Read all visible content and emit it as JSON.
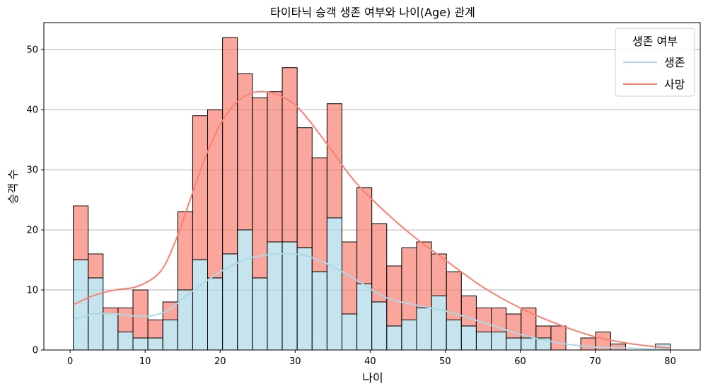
{
  "chart_data": {
    "type": "bar",
    "stacked": true,
    "title": "타이타닉 승객 생존 여부와 나이(Age) 관계",
    "xlabel": "나이",
    "ylabel": "승객 수",
    "xlim": [
      -3.5,
      84
    ],
    "ylim": [
      0,
      54.5
    ],
    "xticks": [
      0,
      10,
      20,
      30,
      40,
      50,
      60,
      70,
      80
    ],
    "yticks": [
      0,
      10,
      20,
      30,
      40,
      50
    ],
    "grid": "horizontal",
    "legend": {
      "title": "생존 여부",
      "placement": "top-right",
      "entries": [
        "생존",
        "사망"
      ]
    },
    "bin_edges": [
      0.42,
      2.41,
      4.4,
      6.39,
      8.38,
      10.37,
      12.36,
      14.35,
      16.34,
      18.33,
      20.32,
      22.31,
      24.3,
      26.29,
      28.28,
      30.27,
      32.26,
      34.25,
      36.24,
      38.23,
      40.22,
      42.21,
      44.2,
      46.19,
      48.18,
      50.17,
      52.16,
      54.15,
      56.14,
      58.13,
      60.12,
      62.11,
      64.1,
      66.09,
      68.08,
      70.07,
      72.06,
      74.05,
      76.04,
      78.03,
      80.02
    ],
    "series": [
      {
        "name": "생존",
        "color": "#add8e6",
        "counts": [
          15,
          12,
          6,
          3,
          2,
          2,
          5,
          10,
          15,
          12,
          16,
          20,
          12,
          18,
          18,
          17,
          13,
          22,
          6,
          11,
          8,
          4,
          5,
          7,
          9,
          5,
          4,
          3,
          3,
          2,
          2,
          2,
          0,
          0,
          0,
          0,
          0,
          0,
          0,
          1
        ],
        "kde": [
          [
            0.4,
            5.0
          ],
          [
            3,
            6.0
          ],
          [
            6,
            6.0
          ],
          [
            10,
            5.6
          ],
          [
            13,
            6.6
          ],
          [
            16,
            9.5
          ],
          [
            20,
            13.0
          ],
          [
            24,
            15.3
          ],
          [
            28,
            16.0
          ],
          [
            31,
            15.8
          ],
          [
            34,
            14.5
          ],
          [
            38,
            11.8
          ],
          [
            42,
            8.8
          ],
          [
            46,
            7.5
          ],
          [
            50,
            6.5
          ],
          [
            55,
            4.6
          ],
          [
            60,
            2.6
          ],
          [
            65,
            1.2
          ],
          [
            70,
            0.5
          ],
          [
            75,
            0.3
          ],
          [
            80,
            0.1
          ]
        ]
      },
      {
        "name": "사망",
        "color": "#fa8072",
        "counts": [
          9,
          4,
          1,
          4,
          8,
          3,
          3,
          13,
          24,
          28,
          36,
          26,
          30,
          25,
          29,
          20,
          19,
          19,
          12,
          16,
          13,
          10,
          12,
          11,
          7,
          8,
          5,
          4,
          4,
          4,
          5,
          2,
          4,
          0,
          2,
          3,
          1,
          0,
          0,
          0
        ],
        "kde": [
          [
            0.4,
            7.5
          ],
          [
            3,
            9.0
          ],
          [
            6,
            10.0
          ],
          [
            9,
            10.6
          ],
          [
            12,
            13.0
          ],
          [
            14,
            18.0
          ],
          [
            16,
            25.0
          ],
          [
            18,
            32.0
          ],
          [
            20,
            37.5
          ],
          [
            22,
            41.0
          ],
          [
            24,
            42.7
          ],
          [
            26,
            43.0
          ],
          [
            28,
            42.3
          ],
          [
            30,
            40.8
          ],
          [
            32,
            38.0
          ],
          [
            35,
            33.0
          ],
          [
            38,
            28.0
          ],
          [
            42,
            23.0
          ],
          [
            46,
            18.7
          ],
          [
            50,
            15.0
          ],
          [
            55,
            10.5
          ],
          [
            60,
            7.0
          ],
          [
            65,
            4.3
          ],
          [
            70,
            2.2
          ],
          [
            75,
            1.0
          ],
          [
            80,
            0.3
          ]
        ]
      }
    ]
  }
}
